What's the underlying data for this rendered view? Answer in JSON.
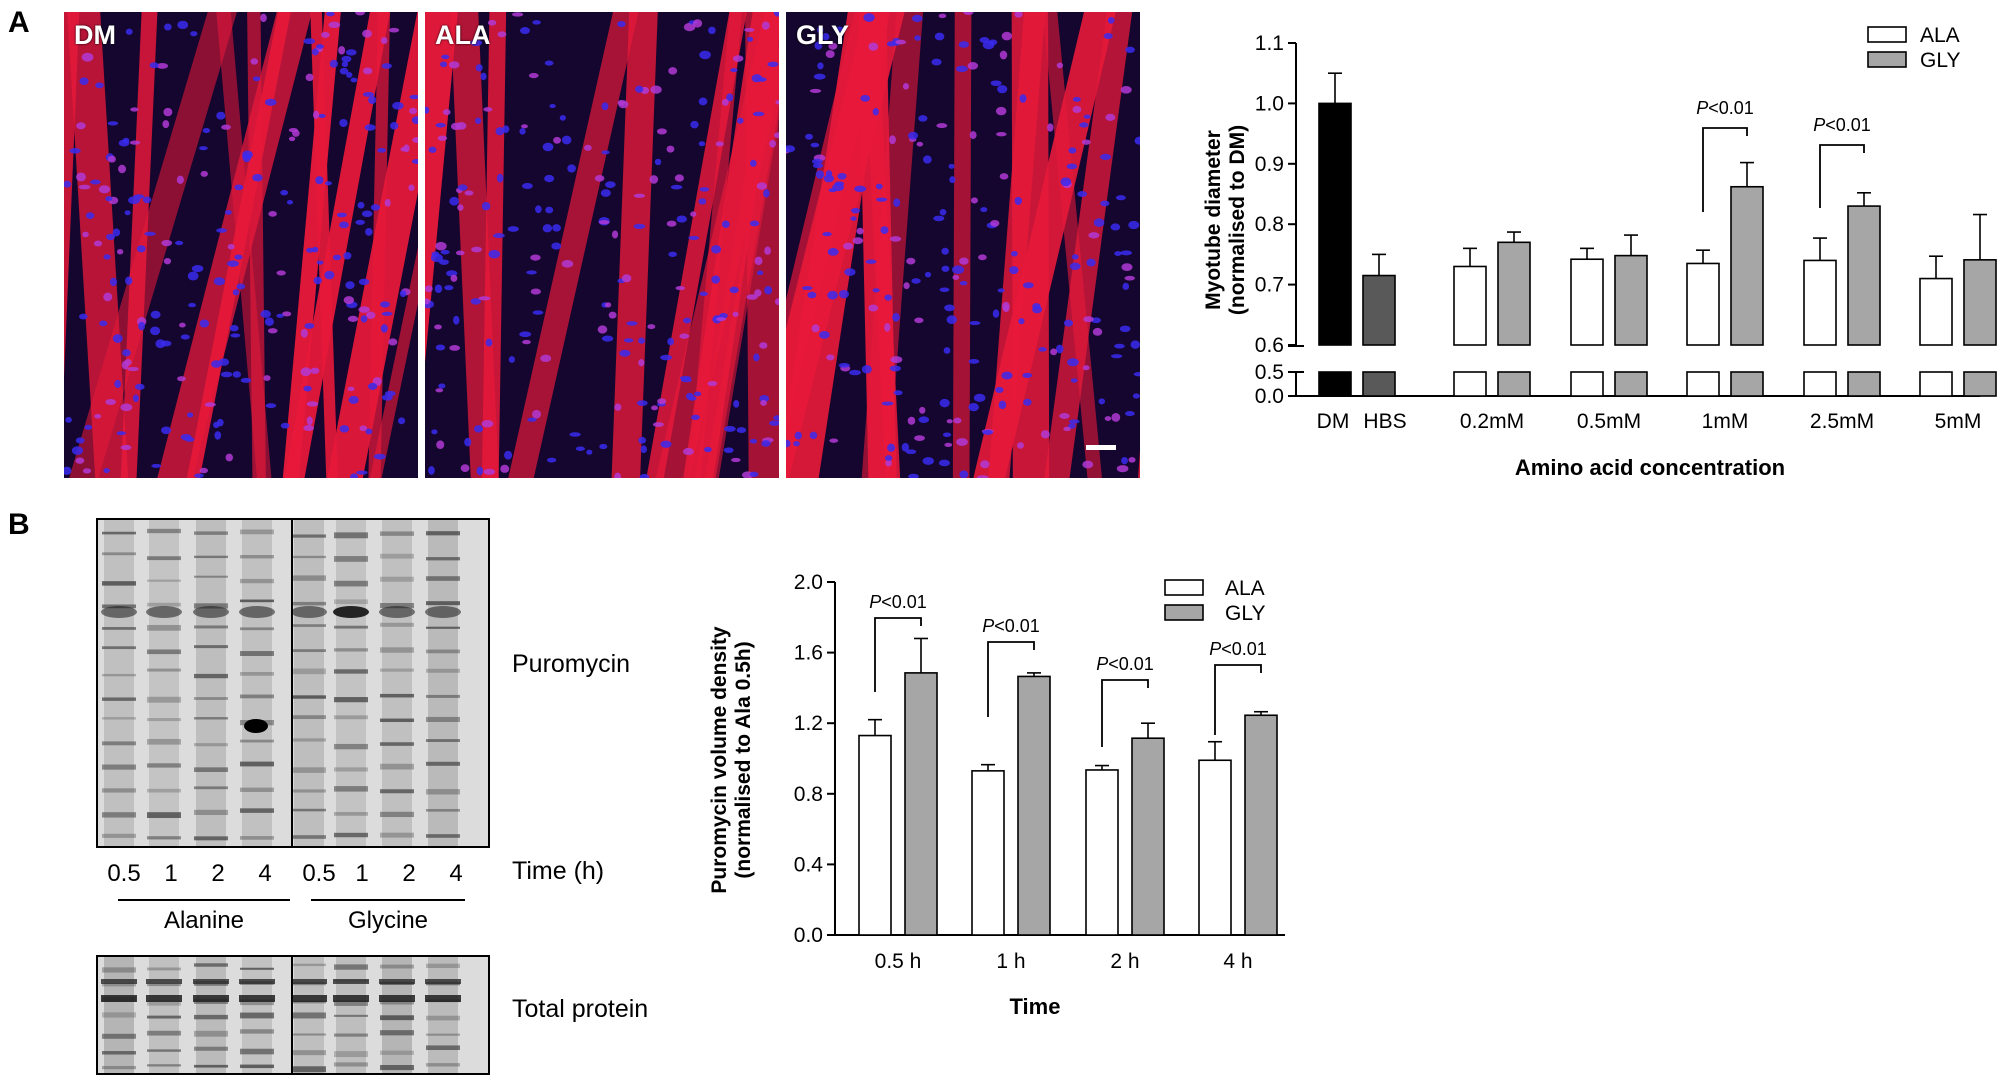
{
  "panel_a": {
    "letter": "A",
    "images": [
      {
        "label": "DM"
      },
      {
        "label": "ALA"
      },
      {
        "label": "GLY"
      }
    ]
  },
  "panel_b": {
    "letter": "B",
    "blot": {
      "puromycin_label": "Puromycin",
      "time_label": "Time (h)",
      "lanes": [
        "0.5",
        "1",
        "2",
        "4",
        "0.5",
        "1",
        "2",
        "4"
      ],
      "groups": [
        "Alanine",
        "Glycine"
      ],
      "total_protein_label": "Total protein"
    }
  },
  "colors": {
    "ala_fill": "#ffffff",
    "gly_fill": "#a6a6a6",
    "dm_fill": "#000000",
    "hbs_fill": "#595959",
    "myotube_red": "#e8193a",
    "nuclei_blue": "#3a2cf0"
  },
  "chart_data": [
    {
      "type": "bar",
      "ylabel": "Myotube diameter\n(normalised to DM)",
      "xlabel": "Amino acid concentration",
      "ylim": [
        0.0,
        1.1
      ],
      "y_axis_break": [
        0.5,
        0.6
      ],
      "yticks": [
        "0.0",
        "0.5",
        "0.6",
        "0.7",
        "0.8",
        "0.9",
        "1.0",
        "1.1"
      ],
      "controls": [
        {
          "category": "DM",
          "value": 1.0,
          "error": 0.05
        },
        {
          "category": "HBS",
          "value": 0.715,
          "error": 0.035
        }
      ],
      "categories": [
        "0.2mM",
        "0.5mM",
        "1mM",
        "2.5mM",
        "5mM"
      ],
      "series": [
        {
          "name": "ALA",
          "values": [
            0.73,
            0.742,
            0.735,
            0.74,
            0.71
          ],
          "errors": [
            0.03,
            0.018,
            0.022,
            0.037,
            0.037
          ]
        },
        {
          "name": "GLY",
          "values": [
            0.77,
            0.748,
            0.862,
            0.83,
            0.741
          ],
          "errors": [
            0.017,
            0.034,
            0.04,
            0.022,
            0.075
          ]
        }
      ],
      "legend_position": "top-right",
      "annotations": [
        {
          "category": "1mM",
          "text": "P<0.01"
        },
        {
          "category": "2.5mM",
          "text": "P<0.01"
        }
      ]
    },
    {
      "type": "bar",
      "ylabel": "Puromycin volume density\n(normalised to Ala 0.5h)",
      "xlabel": "Time",
      "ylim": [
        0.0,
        2.0
      ],
      "yticks": [
        "0.0",
        "0.4",
        "0.8",
        "1.2",
        "1.6",
        "2.0"
      ],
      "categories": [
        "0.5 h",
        "1 h",
        "2 h",
        "4 h"
      ],
      "series": [
        {
          "name": "ALA",
          "values": [
            1.13,
            0.93,
            0.935,
            0.99
          ],
          "errors": [
            0.09,
            0.035,
            0.025,
            0.105
          ]
        },
        {
          "name": "GLY",
          "values": [
            1.485,
            1.465,
            1.115,
            1.245
          ],
          "errors": [
            0.195,
            0.02,
            0.085,
            0.02
          ]
        }
      ],
      "legend_position": "top-right",
      "annotations": [
        {
          "category": "0.5 h",
          "text": "P<0.01"
        },
        {
          "category": "1 h",
          "text": "P<0.01"
        },
        {
          "category": "2 h",
          "text": "P<0.01"
        },
        {
          "category": "4 h",
          "text": "P<0.01"
        }
      ]
    }
  ]
}
